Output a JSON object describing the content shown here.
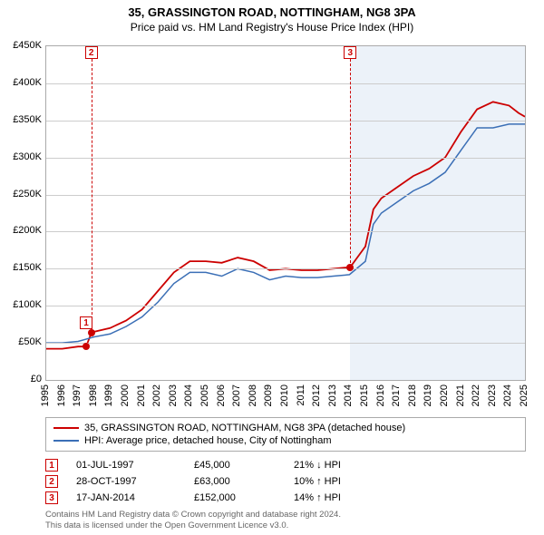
{
  "title": "35, GRASSINGTON ROAD, NOTTINGHAM, NG8 3PA",
  "subtitle": "Price paid vs. HM Land Registry's House Price Index (HPI)",
  "chart": {
    "type": "line",
    "background_color": "#ffffff",
    "grid_color": "#cccccc",
    "border_color": "#aaaaaa",
    "x": {
      "min": 1995,
      "max": 2025,
      "tick_step": 1,
      "label_fontsize": 11
    },
    "y": {
      "min": 0,
      "max": 450000,
      "tick_step": 50000,
      "tick_labels": [
        "£0",
        "£50K",
        "£100K",
        "£150K",
        "£200K",
        "£250K",
        "£300K",
        "£350K",
        "£400K",
        "£450K"
      ],
      "label_fontsize": 11
    },
    "shaded_region": {
      "x_start": 2014.05,
      "x_end": 2025,
      "color": "rgba(70,130,200,0.10)"
    },
    "series": [
      {
        "name": "35, GRASSINGTON ROAD, NOTTINGHAM, NG8 3PA (detached house)",
        "color": "#cc0000",
        "line_width": 1.8,
        "points": [
          [
            1995,
            42000
          ],
          [
            1996,
            42000
          ],
          [
            1997,
            45000
          ],
          [
            1997.5,
            45000
          ],
          [
            1997.82,
            63000
          ],
          [
            1998,
            65000
          ],
          [
            1999,
            70000
          ],
          [
            2000,
            80000
          ],
          [
            2001,
            95000
          ],
          [
            2002,
            120000
          ],
          [
            2003,
            145000
          ],
          [
            2004,
            160000
          ],
          [
            2005,
            160000
          ],
          [
            2006,
            158000
          ],
          [
            2007,
            165000
          ],
          [
            2008,
            160000
          ],
          [
            2009,
            148000
          ],
          [
            2010,
            150000
          ],
          [
            2011,
            148000
          ],
          [
            2012,
            148000
          ],
          [
            2013,
            150000
          ],
          [
            2014.05,
            152000
          ],
          [
            2015,
            180000
          ],
          [
            2015.5,
            230000
          ],
          [
            2016,
            245000
          ],
          [
            2017,
            260000
          ],
          [
            2018,
            275000
          ],
          [
            2019,
            285000
          ],
          [
            2020,
            300000
          ],
          [
            2021,
            335000
          ],
          [
            2022,
            365000
          ],
          [
            2023,
            375000
          ],
          [
            2024,
            370000
          ],
          [
            2024.6,
            360000
          ],
          [
            2025,
            355000
          ]
        ]
      },
      {
        "name": "HPI: Average price, detached house, City of Nottingham",
        "color": "#3b6fb6",
        "line_width": 1.5,
        "points": [
          [
            1995,
            50000
          ],
          [
            1996,
            50000
          ],
          [
            1997,
            52000
          ],
          [
            1998,
            58000
          ],
          [
            1999,
            62000
          ],
          [
            2000,
            72000
          ],
          [
            2001,
            85000
          ],
          [
            2002,
            105000
          ],
          [
            2003,
            130000
          ],
          [
            2004,
            145000
          ],
          [
            2005,
            145000
          ],
          [
            2006,
            140000
          ],
          [
            2007,
            150000
          ],
          [
            2008,
            145000
          ],
          [
            2009,
            135000
          ],
          [
            2010,
            140000
          ],
          [
            2011,
            138000
          ],
          [
            2012,
            138000
          ],
          [
            2013,
            140000
          ],
          [
            2014,
            142000
          ],
          [
            2015,
            160000
          ],
          [
            2015.5,
            210000
          ],
          [
            2016,
            225000
          ],
          [
            2017,
            240000
          ],
          [
            2018,
            255000
          ],
          [
            2019,
            265000
          ],
          [
            2020,
            280000
          ],
          [
            2021,
            310000
          ],
          [
            2022,
            340000
          ],
          [
            2023,
            340000
          ],
          [
            2024,
            345000
          ],
          [
            2025,
            345000
          ]
        ]
      }
    ],
    "markers": [
      {
        "n": "1",
        "x": 1997.5,
        "y": 45000,
        "label_y": 68000
      },
      {
        "n": "2",
        "x": 1997.82,
        "y": 63000,
        "label_top": true
      },
      {
        "n": "3",
        "x": 2014.05,
        "y": 152000,
        "label_top": true
      }
    ]
  },
  "legend": [
    {
      "color": "#cc0000",
      "label": "35, GRASSINGTON ROAD, NOTTINGHAM, NG8 3PA (detached house)"
    },
    {
      "color": "#3b6fb6",
      "label": "HPI: Average price, detached house, City of Nottingham"
    }
  ],
  "events": [
    {
      "n": "1",
      "date": "01-JUL-1997",
      "price": "£45,000",
      "pct": "21% ↓ HPI"
    },
    {
      "n": "2",
      "date": "28-OCT-1997",
      "price": "£63,000",
      "pct": "10% ↑ HPI"
    },
    {
      "n": "3",
      "date": "17-JAN-2014",
      "price": "£152,000",
      "pct": "14% ↑ HPI"
    }
  ],
  "footer_line1": "Contains HM Land Registry data © Crown copyright and database right 2024.",
  "footer_line2": "This data is licensed under the Open Government Licence v3.0."
}
